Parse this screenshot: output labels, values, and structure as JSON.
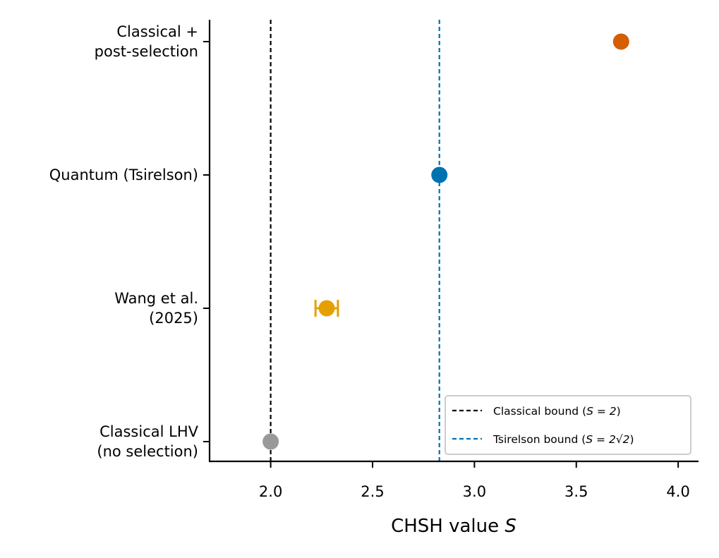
{
  "chart_data": {
    "type": "scatter",
    "title": "",
    "xlabel": "CHSH value",
    "xlabel_var": "S",
    "xlim": [
      1.7,
      4.1
    ],
    "xticks": [
      2.0,
      2.5,
      3.0,
      3.5,
      4.0
    ],
    "xtick_labels": [
      "2.0",
      "2.5",
      "3.0",
      "3.5",
      "4.0"
    ],
    "grid": false,
    "categories": [
      {
        "lines": [
          "Classical LHV",
          "(no selection)"
        ]
      },
      {
        "lines": [
          "Wang et al.",
          "(2025)"
        ]
      },
      {
        "lines": [
          "Quantum (Tsirelson)"
        ]
      },
      {
        "lines": [
          "Classical +",
          "post-selection"
        ]
      }
    ],
    "points": [
      {
        "category": 0,
        "value": 2.0,
        "error": null,
        "color": "#999999"
      },
      {
        "category": 1,
        "value": 2.275,
        "error": 0.055,
        "color": "#E69F00"
      },
      {
        "category": 2,
        "value": 2.828,
        "error": null,
        "color": "#0072B2"
      },
      {
        "category": 3,
        "value": 3.72,
        "error": null,
        "color": "#D55E00"
      }
    ],
    "reference_lines": [
      {
        "x": 2.0,
        "color": "#000000",
        "label_prefix": "Classical bound (",
        "label_math": "S = 2",
        "label_suffix": ")"
      },
      {
        "x": 2.828,
        "color": "#0072B2",
        "label_prefix": "Tsirelson bound (",
        "label_math": "S = 2√2",
        "label_suffix": ")"
      }
    ],
    "legend_position": "lower-right"
  }
}
